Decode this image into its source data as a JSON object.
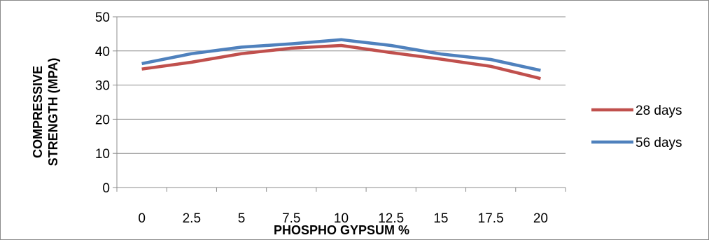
{
  "chart_data": {
    "type": "line",
    "categories": [
      "0",
      "2.5",
      "5",
      "7.5",
      "10",
      "12.5",
      "15",
      "17.5",
      "20"
    ],
    "series": [
      {
        "name": "28 days",
        "color": "#c0504d",
        "values": [
          34.7,
          36.7,
          39.2,
          40.8,
          41.6,
          39.5,
          37.6,
          35.5,
          31.9
        ]
      },
      {
        "name": "56 days",
        "color": "#4f81bd",
        "values": [
          36.3,
          39.2,
          41.1,
          42.1,
          43.3,
          41.6,
          39.1,
          37.5,
          34.3
        ]
      }
    ],
    "xlabel": "PHOSPHO GYPSUM %",
    "ylabel_lines": [
      "COMPRESSIVE",
      "STRENGTH (MPA)"
    ],
    "ylim": [
      0,
      50
    ],
    "yticks": [
      "0",
      "10",
      "20",
      "30",
      "40",
      "50"
    ],
    "grid": true,
    "legend_position": "right"
  }
}
